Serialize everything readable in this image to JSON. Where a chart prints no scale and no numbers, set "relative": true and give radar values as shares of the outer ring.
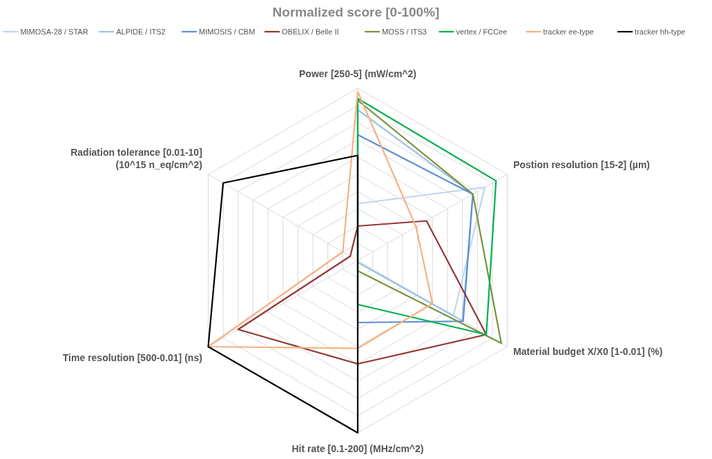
{
  "chart_data": {
    "type": "radar",
    "title": "Normalized score [0-100%]",
    "relative": true,
    "grid": true,
    "legend": "top",
    "line_style": "solid",
    "marker": "none",
    "categories": [
      "Power [250-5] (mW/cm^2)",
      "Postion resolution [15-2] (µm)",
      "Material budget X/X0 [1-0.01] (%)",
      "Hit rate [0.1-200] (MHz/cm^2)",
      "Time resolution [500-0.01] (ns)",
      "Radiation tolerance [0.01-10]\n(10^15 n_eq/cm^2)"
    ],
    "series": [
      {
        "name": "MIMOSA-28 / STAR",
        "color": "#bdd7ee",
        "values": [
          0.33,
          0.85,
          0.64,
          0.01,
          0,
          0
        ]
      },
      {
        "name": "ALPIDE / ITS2",
        "color": "#9dc3e6",
        "values": [
          0.875,
          0.77,
          0.7,
          0.01,
          0,
          0
        ]
      },
      {
        "name": "MIMOSIS / CBM",
        "color": "#5b8fd6",
        "values": [
          0.73,
          0.77,
          0.705,
          0.36,
          0,
          0
        ]
      },
      {
        "name": "OBELIX / Belle II",
        "color": "#943634",
        "values": [
          0.2,
          0.46,
          0.86,
          0.6,
          0.8,
          0.05
        ]
      },
      {
        "name": "MOSS / ITS3",
        "color": "#77933c",
        "values": [
          0.93,
          0.77,
          0.96,
          0.06,
          0,
          0
        ]
      },
      {
        "name": "vertex / FCCee",
        "color": "#00b050",
        "values": [
          0.94,
          0.925,
          0.86,
          0.255,
          0,
          0
        ]
      },
      {
        "name": "tracker ee-type",
        "color": "#f4b183",
        "values": [
          0.98,
          0.39,
          0.5,
          0.51,
          1,
          0.1
        ]
      },
      {
        "name": "tracker hh-type",
        "color": "#000000",
        "values": [
          0.61,
          0,
          0,
          1,
          1,
          0.9
        ]
      }
    ]
  }
}
